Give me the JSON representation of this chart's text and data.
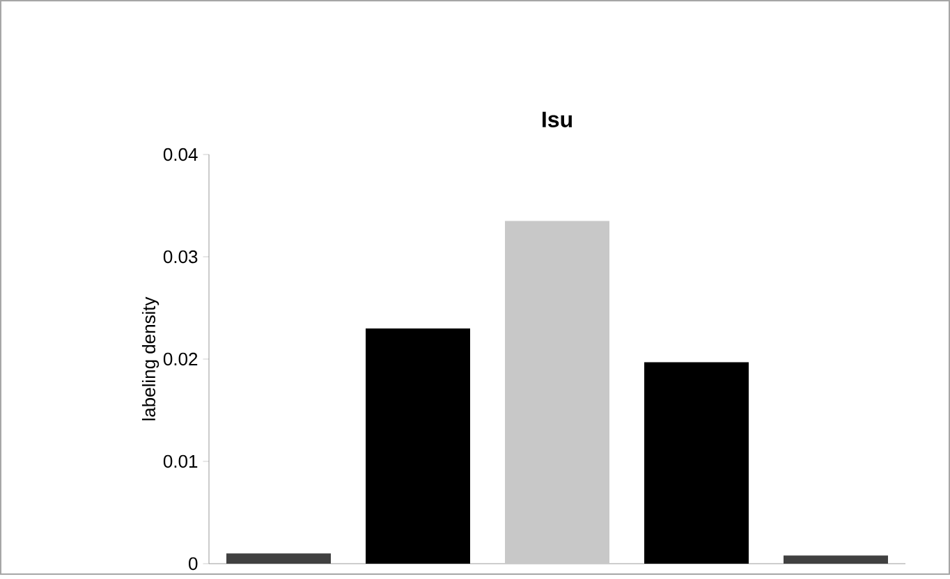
{
  "chart_data": {
    "type": "bar",
    "title": "Isu",
    "ylabel": "labeling density",
    "categories": [
      null,
      null,
      null,
      null,
      null
    ],
    "values": [
      0.001,
      0.023,
      0.0335,
      0.0197,
      0.0008
    ],
    "colors": [
      "#404040",
      "#000000",
      "#c8c8c8",
      "#000000",
      "#404040"
    ],
    "ylim": [
      0,
      0.04
    ],
    "yticks": [
      0,
      0.01,
      0.02,
      0.03,
      0.04
    ],
    "grid": false
  }
}
